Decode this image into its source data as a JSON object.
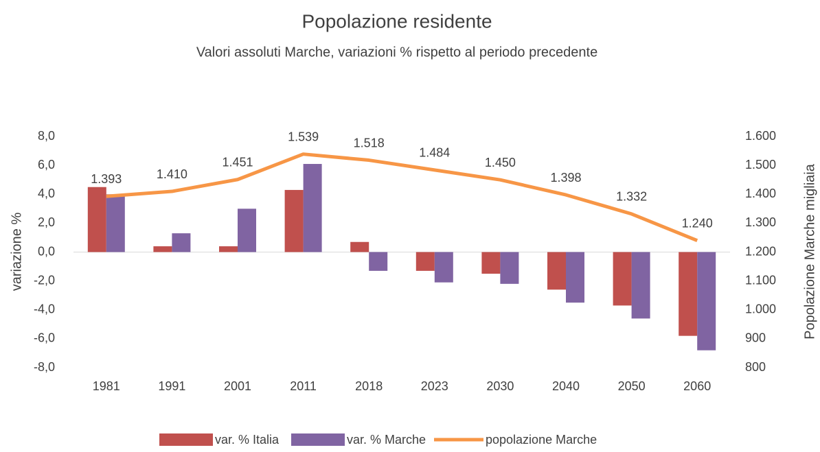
{
  "chart_data": {
    "type": "bar_line",
    "title": "Popolazione residente",
    "subtitle": "Valori assoluti Marche, variazioni % rispetto al periodo precedente",
    "y_label": "variazione %",
    "y2_label": "Popolazione Marche migliaia",
    "categories": [
      "1981",
      "1991",
      "2001",
      "2011",
      "2018",
      "2023",
      "2030",
      "2040",
      "2050",
      "2060"
    ],
    "series": [
      {
        "name": "var. % Italia",
        "type": "bar",
        "color": "#c0504d",
        "values": [
          4.5,
          0.4,
          0.4,
          4.3,
          0.7,
          -1.3,
          -1.5,
          -2.6,
          -3.7,
          -5.8
        ]
      },
      {
        "name": "var. % Marche",
        "type": "bar",
        "color": "#8064a2",
        "values": [
          4.0,
          1.3,
          3.0,
          6.1,
          -1.3,
          -2.1,
          -2.2,
          -3.5,
          -4.6,
          -6.8
        ]
      },
      {
        "name": "popolazione Marche",
        "type": "line",
        "axis": "y2",
        "color": "#f79646",
        "values": [
          1393,
          1410,
          1451,
          1539,
          1518,
          1484,
          1450,
          1398,
          1332,
          1240
        ],
        "value_labels": [
          "1.393",
          "1.410",
          "1.451",
          "1.539",
          "1.518",
          "1.484",
          "1.450",
          "1.398",
          "1.332",
          "1.240"
        ]
      }
    ],
    "ylim": [
      -8,
      8
    ],
    "yticks": [
      {
        "value": -8,
        "label": "-8,0"
      },
      {
        "value": -6,
        "label": "-6,0"
      },
      {
        "value": -4,
        "label": "-4,0"
      },
      {
        "value": -2,
        "label": "-2,0"
      },
      {
        "value": 0,
        "label": "0,0"
      },
      {
        "value": 2,
        "label": "2,0"
      },
      {
        "value": 4,
        "label": "4,0"
      },
      {
        "value": 6,
        "label": "6,0"
      },
      {
        "value": 8,
        "label": "8,0"
      }
    ],
    "y2lim": [
      800,
      1600
    ],
    "y2ticks": [
      800,
      900,
      {
        "value": 1000,
        "label": "1.000"
      },
      {
        "value": 1100,
        "label": "1.100"
      },
      {
        "value": 1200,
        "label": "1.200"
      },
      {
        "value": 1300,
        "label": "1.300"
      },
      {
        "value": 1400,
        "label": "1.400"
      },
      {
        "value": 1500,
        "label": "1.500"
      },
      {
        "value": 1600,
        "label": "1.600"
      }
    ],
    "grid": false,
    "legend": "bottom"
  }
}
